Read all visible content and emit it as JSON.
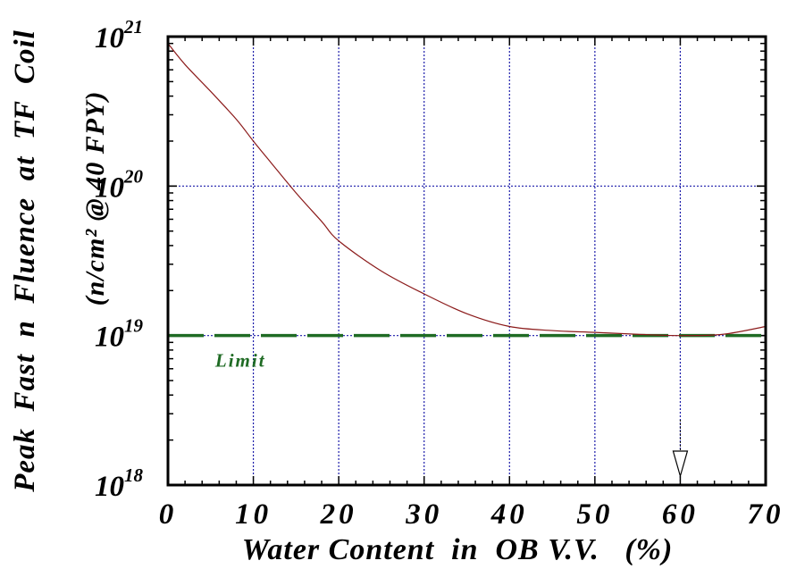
{
  "chart_data": {
    "type": "line",
    "xlabel": "Water Content  in  OB V.V.   (%)",
    "ylabel_line1": "Peak  Fast  n  Fluence  at  TF  Coil",
    "ylabel_line2": "(n/cm² @ 40 FPY)",
    "xlim": [
      0,
      70
    ],
    "ylim": [
      1e+18,
      1e+21
    ],
    "yscale": "log",
    "x_ticks": [
      "0",
      "10",
      "20",
      "30",
      "40",
      "50",
      "60",
      "70"
    ],
    "y_ticks": [
      {
        "base": "10",
        "exp": "18"
      },
      {
        "base": "10",
        "exp": "19"
      },
      {
        "base": "10",
        "exp": "20"
      },
      {
        "base": "10",
        "exp": "21"
      }
    ],
    "grid": true,
    "series": [
      {
        "color": "#8b1a1a",
        "x": [
          0,
          2,
          5,
          8,
          10,
          12,
          15,
          18,
          20,
          25,
          30,
          35,
          40,
          45,
          50,
          55,
          60,
          65,
          70
        ],
        "y": [
          9e+20,
          6.5e+20,
          4.3e+20,
          2.8e+20,
          2e+20,
          1.45e+20,
          9e+19,
          5.8e+19,
          4.3e+19,
          2.7e+19,
          1.9e+19,
          1.4e+19,
          1.15e+19,
          1.08e+19,
          1.05e+19,
          1.02e+19,
          1e+19,
          1.02e+19,
          1.15e+19
        ]
      }
    ],
    "limit_line": {
      "label": "Limit",
      "y": 1e+19,
      "color": "#1f6b24"
    },
    "marker_arrow_x": 60
  }
}
